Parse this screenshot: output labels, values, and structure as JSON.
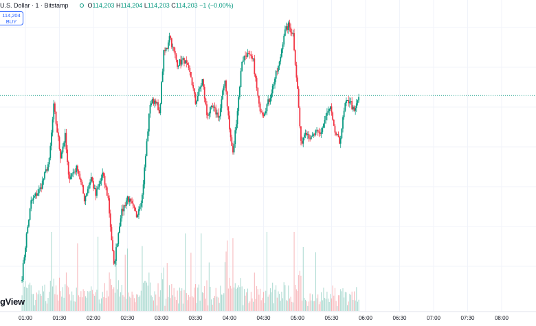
{
  "legend": {
    "title": "U.S. Dollar · 1 · Bitstamp",
    "open_label": "O",
    "open": "114,203",
    "high_label": "H",
    "high": "114,204",
    "low_label": "L",
    "low": "114,203",
    "close_label": "C",
    "close": "114,203",
    "change": "−1 (−0.00%)"
  },
  "buy_pill": {
    "price": "114,204",
    "label": "BUY"
  },
  "watermark": "gView",
  "colors": {
    "up": "#089981",
    "down": "#F23645",
    "up_volume": "#a8d8cf",
    "down_volume": "#f7b5b9",
    "price_line": "#089981",
    "accent": "#2962ff"
  },
  "chart_data": {
    "type": "candlestick",
    "time_axis": [
      "01:00",
      "01:30",
      "02:00",
      "02:30",
      "03:00",
      "03:30",
      "04:00",
      "04:30",
      "05:00",
      "05:30",
      "06:00",
      "06:30",
      "07:00",
      "07:30",
      "08:00"
    ],
    "price_line": 114203,
    "price_range": [
      113640,
      114430
    ],
    "volume_max": 100,
    "anchors": [
      {
        "t": -3,
        "p": 113655
      },
      {
        "t": 1,
        "p": 113780
      },
      {
        "t": 5,
        "p": 113880
      },
      {
        "t": 13,
        "p": 113920
      },
      {
        "t": 21,
        "p": 114005
      },
      {
        "t": 25,
        "p": 114170
      },
      {
        "t": 31,
        "p": 114020
      },
      {
        "t": 35,
        "p": 114080
      },
      {
        "t": 38,
        "p": 113955
      },
      {
        "t": 46,
        "p": 113985
      },
      {
        "t": 52,
        "p": 113890
      },
      {
        "t": 58,
        "p": 113955
      },
      {
        "t": 62,
        "p": 113900
      },
      {
        "t": 68,
        "p": 113965
      },
      {
        "t": 73,
        "p": 113890
      },
      {
        "t": 78,
        "p": 113685
      },
      {
        "t": 84,
        "p": 113840
      },
      {
        "t": 90,
        "p": 113895
      },
      {
        "t": 98,
        "p": 113840
      },
      {
        "t": 103,
        "p": 113900
      },
      {
        "t": 110,
        "p": 114180
      },
      {
        "t": 115,
        "p": 114190
      },
      {
        "t": 118,
        "p": 114140
      },
      {
        "t": 122,
        "p": 114330
      },
      {
        "t": 125,
        "p": 114350
      },
      {
        "t": 127,
        "p": 114390
      },
      {
        "t": 130,
        "p": 114345
      },
      {
        "t": 134,
        "p": 114300
      },
      {
        "t": 140,
        "p": 114310
      },
      {
        "t": 146,
        "p": 114260
      },
      {
        "t": 150,
        "p": 114180
      },
      {
        "t": 156,
        "p": 114250
      },
      {
        "t": 160,
        "p": 114145
      },
      {
        "t": 165,
        "p": 114165
      },
      {
        "t": 171,
        "p": 114140
      },
      {
        "t": 176,
        "p": 114255
      },
      {
        "t": 180,
        "p": 114100
      },
      {
        "t": 183,
        "p": 114025
      },
      {
        "t": 187,
        "p": 114160
      },
      {
        "t": 191,
        "p": 114310
      },
      {
        "t": 195,
        "p": 114330
      },
      {
        "t": 201,
        "p": 114305
      },
      {
        "t": 206,
        "p": 114170
      },
      {
        "t": 210,
        "p": 114150
      },
      {
        "t": 215,
        "p": 114190
      },
      {
        "t": 220,
        "p": 114255
      },
      {
        "t": 224,
        "p": 114300
      },
      {
        "t": 228,
        "p": 114390
      },
      {
        "t": 232,
        "p": 114415
      },
      {
        "t": 236,
        "p": 114390
      },
      {
        "t": 240,
        "p": 114220
      },
      {
        "t": 243,
        "p": 114055
      },
      {
        "t": 247,
        "p": 114100
      },
      {
        "t": 252,
        "p": 114070
      },
      {
        "t": 256,
        "p": 114090
      },
      {
        "t": 260,
        "p": 114085
      },
      {
        "t": 265,
        "p": 114140
      },
      {
        "t": 269,
        "p": 114165
      },
      {
        "t": 272,
        "p": 114100
      },
      {
        "t": 277,
        "p": 114060
      },
      {
        "t": 282,
        "p": 114175
      },
      {
        "t": 286,
        "p": 114190
      },
      {
        "t": 290,
        "p": 114150
      },
      {
        "t": 294,
        "p": 114200
      }
    ]
  }
}
